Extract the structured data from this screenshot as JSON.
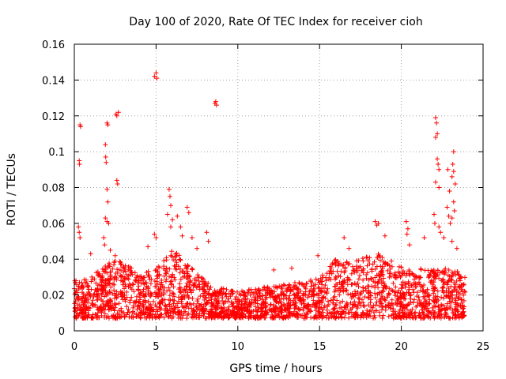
{
  "chart_data": {
    "type": "scatter",
    "title": "Day 100 of 2020, Rate Of TEC Index for receiver cioh",
    "xlabel": "GPS time / hours",
    "ylabel": "ROTI / TECUs",
    "xlim": [
      0,
      25
    ],
    "ylim": [
      0,
      0.16
    ],
    "grid": true,
    "marker": "+",
    "color": "#ff0000",
    "x_ticks": [
      0,
      5,
      10,
      15,
      20,
      25
    ],
    "x_tick_labels": [
      "0",
      "5",
      "10",
      "15",
      "20",
      "25"
    ],
    "y_ticks": [
      0,
      0.02,
      0.04,
      0.06,
      0.08,
      0.1,
      0.12,
      0.14,
      0.16
    ],
    "y_tick_labels": [
      "0",
      "0.02",
      "0.04",
      "0.06",
      "0.08",
      "0.1",
      "0.12",
      "0.14",
      "0.16"
    ],
    "envelope": {
      "description": "approximate upper edge of the dense point band (hours, TECU)",
      "x": [
        0,
        1,
        2,
        2.7,
        4,
        5,
        6,
        6.8,
        8,
        9,
        10,
        12,
        13,
        15,
        16,
        17,
        18.5,
        20,
        22,
        23,
        24
      ],
      "top": [
        0.028,
        0.03,
        0.038,
        0.04,
        0.032,
        0.035,
        0.045,
        0.04,
        0.028,
        0.024,
        0.022,
        0.025,
        0.026,
        0.03,
        0.04,
        0.038,
        0.044,
        0.036,
        0.034,
        0.036,
        0.03
      ],
      "floor": 0.007
    },
    "highlight_points": [
      {
        "x": 0.2,
        "y": 0.018
      },
      {
        "x": 0.3,
        "y": 0.095
      },
      {
        "x": 0.32,
        "y": 0.093
      },
      {
        "x": 0.35,
        "y": 0.115
      },
      {
        "x": 0.38,
        "y": 0.114
      },
      {
        "x": 0.25,
        "y": 0.058
      },
      {
        "x": 0.3,
        "y": 0.055
      },
      {
        "x": 0.35,
        "y": 0.052
      },
      {
        "x": 0.1,
        "y": 0.028
      },
      {
        "x": 1.0,
        "y": 0.043
      },
      {
        "x": 1.9,
        "y": 0.104
      },
      {
        "x": 1.92,
        "y": 0.097
      },
      {
        "x": 1.95,
        "y": 0.094
      },
      {
        "x": 2.0,
        "y": 0.116
      },
      {
        "x": 2.05,
        "y": 0.115
      },
      {
        "x": 2.0,
        "y": 0.079
      },
      {
        "x": 2.05,
        "y": 0.072
      },
      {
        "x": 1.9,
        "y": 0.063
      },
      {
        "x": 2.0,
        "y": 0.061
      },
      {
        "x": 2.1,
        "y": 0.06
      },
      {
        "x": 1.8,
        "y": 0.052
      },
      {
        "x": 1.85,
        "y": 0.048
      },
      {
        "x": 2.2,
        "y": 0.045
      },
      {
        "x": 2.55,
        "y": 0.121
      },
      {
        "x": 2.6,
        "y": 0.12
      },
      {
        "x": 2.7,
        "y": 0.122
      },
      {
        "x": 2.6,
        "y": 0.084
      },
      {
        "x": 2.65,
        "y": 0.082
      },
      {
        "x": 2.5,
        "y": 0.042
      },
      {
        "x": 4.9,
        "y": 0.142
      },
      {
        "x": 5.0,
        "y": 0.144
      },
      {
        "x": 5.05,
        "y": 0.141
      },
      {
        "x": 4.9,
        "y": 0.054
      },
      {
        "x": 5.0,
        "y": 0.052
      },
      {
        "x": 4.5,
        "y": 0.047
      },
      {
        "x": 5.8,
        "y": 0.079
      },
      {
        "x": 5.85,
        "y": 0.075
      },
      {
        "x": 5.9,
        "y": 0.07
      },
      {
        "x": 5.7,
        "y": 0.065
      },
      {
        "x": 6.0,
        "y": 0.062
      },
      {
        "x": 5.9,
        "y": 0.058
      },
      {
        "x": 6.3,
        "y": 0.064
      },
      {
        "x": 6.5,
        "y": 0.058
      },
      {
        "x": 6.9,
        "y": 0.069
      },
      {
        "x": 7.0,
        "y": 0.066
      },
      {
        "x": 6.6,
        "y": 0.053
      },
      {
        "x": 7.2,
        "y": 0.052
      },
      {
        "x": 7.5,
        "y": 0.046
      },
      {
        "x": 8.1,
        "y": 0.055
      },
      {
        "x": 8.2,
        "y": 0.05
      },
      {
        "x": 8.6,
        "y": 0.127
      },
      {
        "x": 8.65,
        "y": 0.128
      },
      {
        "x": 8.7,
        "y": 0.126
      },
      {
        "x": 12.2,
        "y": 0.034
      },
      {
        "x": 13.3,
        "y": 0.035
      },
      {
        "x": 14.9,
        "y": 0.042
      },
      {
        "x": 16.5,
        "y": 0.052
      },
      {
        "x": 16.8,
        "y": 0.046
      },
      {
        "x": 18.4,
        "y": 0.061
      },
      {
        "x": 18.5,
        "y": 0.059
      },
      {
        "x": 18.6,
        "y": 0.06
      },
      {
        "x": 19.0,
        "y": 0.053
      },
      {
        "x": 20.3,
        "y": 0.061
      },
      {
        "x": 20.4,
        "y": 0.057
      },
      {
        "x": 20.35,
        "y": 0.054
      },
      {
        "x": 20.5,
        "y": 0.048
      },
      {
        "x": 21.4,
        "y": 0.052
      },
      {
        "x": 22.1,
        "y": 0.119
      },
      {
        "x": 22.15,
        "y": 0.116
      },
      {
        "x": 22.2,
        "y": 0.11
      },
      {
        "x": 22.1,
        "y": 0.108
      },
      {
        "x": 22.2,
        "y": 0.096
      },
      {
        "x": 22.25,
        "y": 0.093
      },
      {
        "x": 22.3,
        "y": 0.09
      },
      {
        "x": 22.1,
        "y": 0.083
      },
      {
        "x": 22.3,
        "y": 0.08
      },
      {
        "x": 22.0,
        "y": 0.065
      },
      {
        "x": 22.05,
        "y": 0.06
      },
      {
        "x": 22.3,
        "y": 0.058
      },
      {
        "x": 22.4,
        "y": 0.055
      },
      {
        "x": 22.6,
        "y": 0.052
      },
      {
        "x": 22.8,
        "y": 0.069
      },
      {
        "x": 22.9,
        "y": 0.064
      },
      {
        "x": 22.95,
        "y": 0.078
      },
      {
        "x": 22.85,
        "y": 0.09
      },
      {
        "x": 23.2,
        "y": 0.1
      },
      {
        "x": 23.15,
        "y": 0.093
      },
      {
        "x": 23.2,
        "y": 0.089
      },
      {
        "x": 23.1,
        "y": 0.086
      },
      {
        "x": 23.3,
        "y": 0.082
      },
      {
        "x": 23.2,
        "y": 0.072
      },
      {
        "x": 23.25,
        "y": 0.067
      },
      {
        "x": 23.1,
        "y": 0.063
      },
      {
        "x": 23.0,
        "y": 0.06
      },
      {
        "x": 23.1,
        "y": 0.05
      },
      {
        "x": 23.4,
        "y": 0.046
      }
    ],
    "dense_point_count": 2600,
    "random_seed": 100
  }
}
